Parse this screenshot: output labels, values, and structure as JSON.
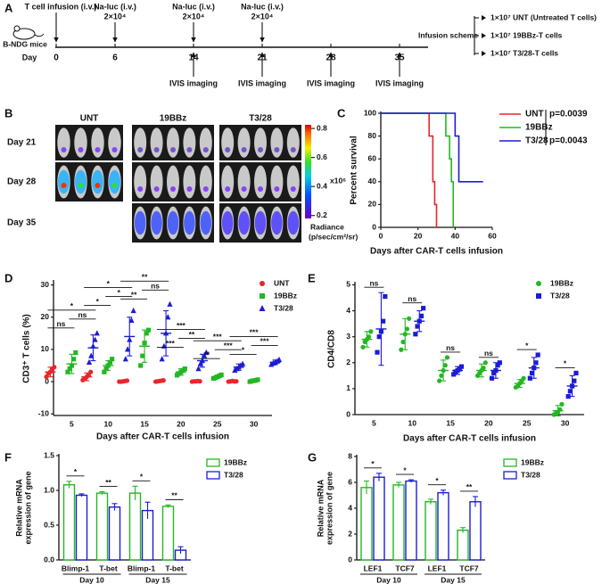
{
  "timeline": {
    "panel_label": "A",
    "mouse_label": "B-NDG mice",
    "day_label": "Day",
    "days": [
      0,
      6,
      14,
      21,
      28,
      35
    ],
    "infusion": "T cell infusion (i.v.)",
    "naluc": {
      "label": "Na-luc (i.v.)",
      "dose": "2×10⁴",
      "days": [
        6,
        14,
        21
      ]
    },
    "imaging": {
      "label": "IVIS imaging",
      "days": [
        14,
        21,
        28,
        35
      ]
    },
    "scheme": {
      "title": "Infusion scheme",
      "items": [
        "1×10⁷ UNT (Untreated T cells)",
        "1×10⁷ 19BBz-T cells",
        "1×10⁷ T3/28-T cells"
      ]
    }
  },
  "imaging": {
    "panel_label": "B",
    "groups": [
      "UNT",
      "19BBz",
      "T3/28"
    ],
    "rows": [
      "Day 21",
      "Day 28",
      "Day 35"
    ],
    "colorbar": {
      "lim": [
        0.18,
        0.825
      ],
      "ticks": [
        0.8,
        0.6,
        0.4,
        0.2
      ],
      "scale": "x10⁶",
      "label": "Radiance",
      "unit": "(p/sec/cm²/sr)"
    }
  },
  "chart_data": [
    {
      "type": "line",
      "step": true,
      "panel_label": "C",
      "ylabel": "Percent survival",
      "xlabel": "Days after CAR-T cells infusion",
      "xlim": [
        0,
        60
      ],
      "xticks": [
        0,
        20,
        40,
        60
      ],
      "ylim": [
        0,
        100
      ],
      "yticks": [
        0,
        20,
        40,
        60,
        80,
        100
      ],
      "series": [
        {
          "name": "UNT",
          "color": "#e8262a",
          "x": [
            0,
            26,
            28,
            29,
            30
          ],
          "values": [
            100,
            80,
            40,
            20,
            0
          ]
        },
        {
          "name": "19BBz",
          "color": "#22b822",
          "x": [
            0,
            35,
            37,
            38,
            39
          ],
          "values": [
            100,
            80,
            60,
            40,
            0
          ]
        },
        {
          "name": "T3/28",
          "color": "#1c1cd6",
          "x": [
            0,
            40,
            42,
            55
          ],
          "values": [
            100,
            80,
            40,
            40
          ]
        }
      ],
      "p_values": [
        "p=0.0039",
        "p=0.0043"
      ]
    },
    {
      "type": "dot",
      "panel_label": "D",
      "ylabel": "CD3⁺ T cells (%)",
      "xlabel": "Days after CAR-T cells infusion",
      "categories": [
        5,
        10,
        15,
        20,
        25,
        30
      ],
      "ylim": [
        -10.5,
        31
      ],
      "yticks": [
        -10,
        0,
        10,
        20,
        30
      ],
      "series": [
        {
          "name": "UNT",
          "color": "#e8262a",
          "marker": "circle",
          "values": [
            3,
            1.5,
            0.1,
            0.2,
            0.1,
            0.1
          ],
          "errors": [
            1.5,
            1.2,
            0.3,
            0.2,
            0.15,
            0.15
          ],
          "points": [
            [
              1.5,
              2.5,
              3,
              4,
              4.5
            ],
            [
              0.5,
              1,
              1.5,
              2,
              3
            ],
            [
              0,
              0,
              0.1,
              0.2,
              0.3
            ],
            [
              0,
              0.1,
              0.2,
              0.3,
              0.4
            ],
            [
              0,
              0.1,
              0.1,
              0.2,
              0.1
            ],
            [
              0,
              0.1,
              0.2,
              0.1,
              0.1
            ]
          ]
        },
        {
          "name": "19BBz",
          "color": "#22b822",
          "marker": "square",
          "values": [
            5.5,
            5,
            11,
            3,
            1.5,
            0.3
          ],
          "errors": [
            3,
            1.5,
            5,
            1,
            0.5,
            0.3
          ],
          "points": [
            [
              3,
              4,
              5,
              7,
              9
            ],
            [
              3,
              4,
              5,
              6,
              7
            ],
            [
              5,
              8,
              12,
              15,
              16
            ],
            [
              2,
              2.5,
              3,
              3.5,
              4
            ],
            [
              1,
              1.2,
              1.5,
              1.8,
              2.1
            ],
            [
              0,
              0.2,
              0.3,
              0.4,
              0.6
            ]
          ]
        },
        {
          "name": "T3/28",
          "color": "#1c1cd6",
          "marker": "triangle",
          "values": [
            10.5,
            14,
            15,
            6.5,
            4.5,
            6
          ],
          "errors": [
            4,
            6,
            7,
            2,
            1,
            0.7
          ],
          "points": [
            [
              6,
              8,
              11,
              13,
              15
            ],
            [
              7,
              10,
              13,
              19,
              22
            ],
            [
              7,
              11,
              15,
              20,
              24
            ],
            [
              4,
              5.5,
              6.5,
              8,
              9
            ],
            [
              3.5,
              4,
              4.5,
              5,
              5.5
            ],
            [
              5.3,
              5.7,
              6,
              6.3,
              6.8
            ]
          ]
        }
      ],
      "annotations": [
        [
          {
            "text": "ns",
            "pair": [
              0,
              1
            ]
          },
          {
            "text": "ns",
            "pair": [
              1,
              2
            ]
          },
          {
            "text": "*",
            "pair": [
              0,
              2
            ]
          }
        ],
        [
          {
            "text": "*",
            "pair": [
              0,
              1
            ]
          },
          {
            "text": "*",
            "pair": [
              1,
              2
            ]
          },
          {
            "text": "*",
            "pair": [
              0,
              2
            ]
          }
        ],
        [
          {
            "text": "**",
            "pair": [
              0,
              1
            ]
          },
          {
            "text": "ns",
            "pair": [
              1,
              2
            ]
          },
          {
            "text": "**",
            "pair": [
              0,
              2
            ]
          }
        ],
        [
          {
            "text": "***",
            "pair": [
              0,
              1
            ]
          },
          {
            "text": "**",
            "pair": [
              1,
              2
            ]
          },
          {
            "text": "***",
            "pair": [
              0,
              2
            ]
          }
        ],
        [
          {
            "text": "**",
            "pair": [
              0,
              1
            ]
          },
          {
            "text": "***",
            "pair": [
              1,
              2
            ]
          },
          {
            "text": "***",
            "pair": [
              0,
              2
            ]
          }
        ],
        [
          {
            "text": "*",
            "pair": [
              0,
              1
            ]
          },
          {
            "text": "***",
            "pair": [
              1,
              2
            ]
          },
          {
            "text": "***",
            "pair": [
              0,
              2
            ]
          }
        ]
      ]
    },
    {
      "type": "dot",
      "panel_label": "E",
      "ylabel": "CD4/CD8",
      "xlabel": "Days after CAR-T cells infusion",
      "categories": [
        5,
        10,
        15,
        20,
        25,
        30
      ],
      "ylim": [
        0,
        5.05
      ],
      "yticks": [
        0,
        1,
        2,
        3,
        4,
        5
      ],
      "series": [
        {
          "name": "19BBz",
          "color": "#22b822",
          "marker": "circle",
          "values": [
            2.9,
            3.1,
            1.7,
            1.7,
            1.2,
            0.15
          ],
          "errors": [
            0.3,
            0.6,
            0.4,
            0.25,
            0.15,
            0.2
          ],
          "points": [
            [
              2.6,
              2.8,
              2.9,
              3.0,
              3.2
            ],
            [
              2.5,
              2.8,
              3.1,
              3.3,
              3.7
            ],
            [
              1.3,
              1.5,
              1.7,
              1.9,
              2.2
            ],
            [
              1.5,
              1.6,
              1.7,
              1.8,
              2.0
            ],
            [
              1.05,
              1.1,
              1.2,
              1.3,
              1.4
            ],
            [
              0,
              0.05,
              0.1,
              0.2,
              0.4
            ]
          ]
        },
        {
          "name": "T3/28",
          "color": "#1c1cd6",
          "marker": "square",
          "values": [
            3.3,
            3.6,
            1.7,
            1.7,
            1.8,
            1.1
          ],
          "errors": [
            1.4,
            0.4,
            0.15,
            0.3,
            0.4,
            0.4
          ],
          "points": [
            [
              2.4,
              3.0,
              3.2,
              3.6,
              4.55
            ],
            [
              3.1,
              3.4,
              3.6,
              3.8,
              4.1
            ],
            [
              1.55,
              1.65,
              1.7,
              1.75,
              1.85
            ],
            [
              1.4,
              1.6,
              1.7,
              1.9,
              2.0
            ],
            [
              1.4,
              1.6,
              1.8,
              2.0,
              2.3
            ],
            [
              0.7,
              0.9,
              1.1,
              1.3,
              1.6
            ]
          ]
        }
      ],
      "annotations": [
        [
          {
            "text": "ns",
            "pair": [
              0,
              1
            ]
          }
        ],
        [
          {
            "text": "ns",
            "pair": [
              0,
              1
            ]
          }
        ],
        [
          {
            "text": "ns",
            "pair": [
              0,
              1
            ]
          }
        ],
        [
          {
            "text": "ns",
            "pair": [
              0,
              1
            ]
          }
        ],
        [
          {
            "text": "*",
            "pair": [
              0,
              1
            ]
          }
        ],
        [
          {
            "text": "*",
            "pair": [
              0,
              1
            ]
          }
        ]
      ]
    },
    {
      "type": "bar",
      "panel_label": "F",
      "ylabel": [
        "Relative mRNA",
        "expression of gene"
      ],
      "categories": [
        "Blimp-1",
        "T-bet",
        "Blimp-1",
        "T-bet"
      ],
      "group_labels": [
        "Day 10",
        "Day 15"
      ],
      "ylim": [
        0,
        1.5
      ],
      "yticks": [
        {
          "value": 0,
          "label": "0.0"
        },
        0.5,
        {
          "value": 1,
          "label": "1.0"
        },
        1.5
      ],
      "series": [
        {
          "name": "19BBz",
          "color": "#22b822",
          "values": [
            1.08,
            0.96,
            0.96,
            0.77
          ],
          "errors": [
            0.05,
            0.02,
            0.1,
            0.02
          ]
        },
        {
          "name": "T3/28",
          "color": "#1c1cd6",
          "values": [
            0.93,
            0.76,
            0.71,
            0.14
          ],
          "errors": [
            0.02,
            0.05,
            0.12,
            0.05
          ]
        }
      ],
      "annotations": [
        [
          {
            "text": "*",
            "pair": [
              0,
              1
            ]
          }
        ],
        [
          {
            "text": "**",
            "pair": [
              0,
              1
            ]
          }
        ],
        [
          {
            "text": "*",
            "pair": [
              0,
              1
            ]
          }
        ],
        [
          {
            "text": "**",
            "pair": [
              0,
              1
            ]
          }
        ]
      ]
    },
    {
      "type": "bar",
      "panel_label": "G",
      "ylabel": [
        "Relative mRNA",
        "expression of gene"
      ],
      "categories": [
        "LEF1",
        "TCF7",
        "LEF1",
        "TCF7"
      ],
      "group_labels": [
        "Day 10",
        "Day 15"
      ],
      "ylim": [
        0,
        8
      ],
      "yticks": [
        0,
        2,
        4,
        6,
        8
      ],
      "series": [
        {
          "name": "19BBz",
          "color": "#22b822",
          "values": [
            5.6,
            5.8,
            4.5,
            2.3
          ],
          "errors": [
            0.5,
            0.2,
            0.2,
            0.2
          ]
        },
        {
          "name": "T3/28",
          "color": "#1c1cd6",
          "values": [
            6.4,
            6.1,
            5.2,
            4.5
          ],
          "errors": [
            0.3,
            0.1,
            0.2,
            0.4
          ]
        }
      ],
      "annotations": [
        [
          {
            "text": "*",
            "pair": [
              0,
              1
            ]
          }
        ],
        [
          {
            "text": "*",
            "pair": [
              0,
              1
            ]
          }
        ],
        [
          {
            "text": "*",
            "pair": [
              0,
              1
            ]
          }
        ],
        [
          {
            "text": "**",
            "pair": [
              0,
              1
            ]
          }
        ]
      ]
    }
  ]
}
